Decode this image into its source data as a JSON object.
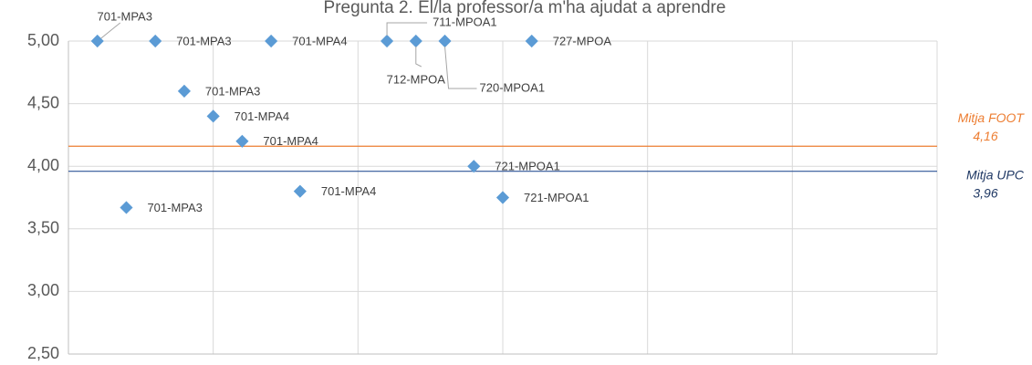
{
  "chart_data": {
    "type": "scatter",
    "title": "Pregunta 2. El/la professor/a m'ha ajudat a aprendre",
    "x": [
      1,
      2,
      3,
      4,
      5,
      6,
      7,
      8,
      11,
      12,
      13,
      14,
      15,
      16
    ],
    "series": [
      {
        "color": "#5B9BD5",
        "values": [
          5.0,
          3.67,
          5.0,
          4.6,
          4.4,
          4.2,
          5.0,
          3.8,
          5.0,
          5.0,
          5.0,
          4.0,
          3.75,
          5.0
        ],
        "labels": [
          "701-MPA3",
          "701-MPA3",
          "701-MPA3",
          "701-MPA3",
          "701-MPA4",
          "701-MPA4",
          "701-MPA4",
          "701-MPA4",
          "711-MPOA1",
          "712-MPOA",
          "720-MPOA1",
          "721-MPOA1",
          "721-MPOA1",
          "727-MPOA"
        ]
      }
    ],
    "xlim": [
      0,
      30
    ],
    "xticks": [
      0,
      5,
      10,
      15,
      20,
      25,
      30
    ],
    "ylim": [
      2.5,
      5.0
    ],
    "yticks": [
      {
        "value": 2.5,
        "label": "2,50"
      },
      {
        "value": 3.0,
        "label": "3,00"
      },
      {
        "value": 3.5,
        "label": "3,50"
      },
      {
        "value": 4.0,
        "label": "4,00"
      },
      {
        "value": 4.5,
        "label": "4,50"
      },
      {
        "value": 5.0,
        "label": "5,00"
      }
    ],
    "grid": true,
    "reference_lines": [
      {
        "name": "Mitja FOOT",
        "value": 4.16,
        "value_label": "4,16",
        "color": "#ED7D31",
        "text_color": "#ED7D31"
      },
      {
        "name": "Mitja UPC",
        "value": 3.96,
        "value_label": "3,96",
        "color": "#2F5597",
        "text_color": "#1F3864"
      }
    ]
  }
}
